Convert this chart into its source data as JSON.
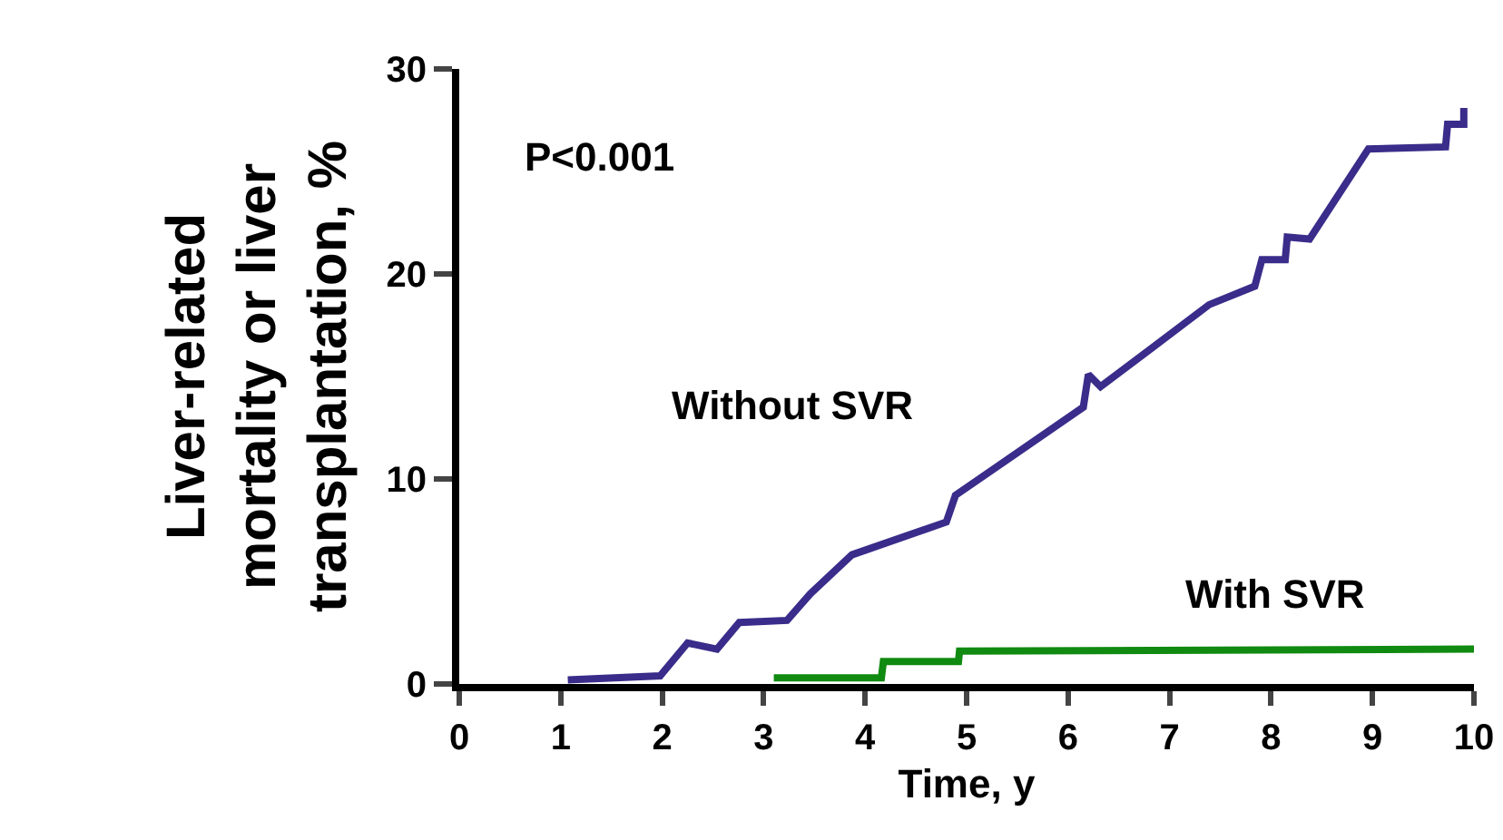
{
  "chart_data": {
    "type": "line",
    "xlabel": "Time, y",
    "ylabel": "Liver-related\nmortality or liver\ntransplantation, %",
    "xlim": [
      0,
      10
    ],
    "xticks": [
      0,
      1,
      2,
      3,
      4,
      5,
      6,
      7,
      8,
      9,
      10
    ],
    "ylim": [
      0,
      30
    ],
    "yticks": [
      0,
      10,
      20,
      30
    ],
    "grid": false,
    "legend": false,
    "annotations": [
      "P<0.001"
    ],
    "series": [
      {
        "name": "Without SVR",
        "color": "#3a2c8a",
        "x": [
          1.07,
          1.98,
          2.25,
          2.54,
          2.76,
          3.23,
          3.46,
          3.87,
          4.8,
          4.89,
          6.15,
          6.2,
          6.32,
          7.39,
          7.84,
          7.91,
          8.14,
          8.16,
          8.38,
          8.96,
          9.72,
          9.74,
          9.9,
          9.9
        ],
        "values": [
          0.2,
          0.4,
          2.0,
          1.7,
          3.0,
          3.1,
          4.4,
          6.3,
          7.9,
          9.2,
          13.5,
          15.1,
          14.5,
          18.5,
          19.4,
          20.7,
          20.7,
          21.8,
          21.7,
          26.1,
          26.2,
          27.3,
          27.3,
          28.1
        ]
      },
      {
        "name": "With SVR",
        "color": "#108a10",
        "x": [
          3.1,
          4.16,
          4.18,
          4.92,
          4.93,
          10
        ],
        "values": [
          0.3,
          0.3,
          1.1,
          1.1,
          1.6,
          1.7
        ]
      }
    ]
  }
}
